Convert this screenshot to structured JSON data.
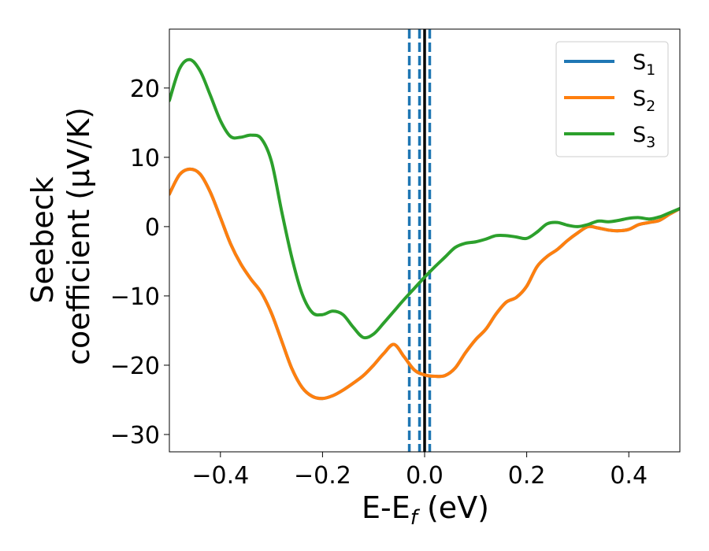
{
  "chart_data": {
    "type": "line",
    "xlabel": {
      "main": "E-E",
      "sub": "f",
      "suffix": " (eV)"
    },
    "ylabel": [
      "Seebeck",
      "coefficient  (μV/K)"
    ],
    "xlim": [
      -0.5,
      0.5
    ],
    "ylim": [
      -32.5,
      28.5
    ],
    "x_ticks": [
      -0.4,
      -0.2,
      0.0,
      0.2,
      0.4
    ],
    "x_tick_labels": [
      "−0.4",
      "−0.2",
      "0.0",
      "0.2",
      "0.4"
    ],
    "y_ticks": [
      -30,
      -20,
      -10,
      0,
      10,
      20
    ],
    "y_tick_labels": [
      "−30",
      "−20",
      "−10",
      "0",
      "10",
      "20"
    ],
    "grid": false,
    "legend_position": "top-right",
    "vertical_lines": [
      {
        "x": -0.03,
        "style": "dashed",
        "color": "#1f77b4"
      },
      {
        "x": -0.01,
        "style": "dashed",
        "color": "#1f77b4"
      },
      {
        "x": 0.01,
        "style": "dashed",
        "color": "#1f77b4"
      },
      {
        "x": 0.0,
        "style": "solid",
        "color": "#000000"
      }
    ],
    "series": [
      {
        "name": "S",
        "sub": "1",
        "color": "#1f77b4",
        "points": [
          [
            -0.5,
            4.7
          ],
          [
            -0.48,
            7.5
          ],
          [
            -0.46,
            8.3
          ],
          [
            -0.44,
            7.6
          ],
          [
            -0.42,
            5.0
          ],
          [
            -0.4,
            1.3
          ],
          [
            -0.38,
            -2.5
          ],
          [
            -0.36,
            -5.4
          ],
          [
            -0.34,
            -7.6
          ],
          [
            -0.32,
            -9.5
          ],
          [
            -0.3,
            -12.5
          ],
          [
            -0.28,
            -16.5
          ],
          [
            -0.26,
            -20.5
          ],
          [
            -0.24,
            -23.2
          ],
          [
            -0.22,
            -24.5
          ],
          [
            -0.2,
            -24.8
          ],
          [
            -0.18,
            -24.4
          ],
          [
            -0.16,
            -23.6
          ],
          [
            -0.14,
            -22.6
          ],
          [
            -0.12,
            -21.5
          ],
          [
            -0.1,
            -20.0
          ],
          [
            -0.08,
            -18.3
          ],
          [
            -0.06,
            -17.0
          ],
          [
            -0.04,
            -18.8
          ],
          [
            -0.02,
            -20.7
          ],
          [
            0.0,
            -21.4
          ],
          [
            0.02,
            -21.6
          ],
          [
            0.04,
            -21.5
          ],
          [
            0.06,
            -20.4
          ],
          [
            0.08,
            -18.2
          ],
          [
            0.1,
            -16.3
          ],
          [
            0.12,
            -14.8
          ],
          [
            0.14,
            -12.6
          ],
          [
            0.16,
            -10.9
          ],
          [
            0.18,
            -10.2
          ],
          [
            0.2,
            -8.6
          ],
          [
            0.22,
            -5.8
          ],
          [
            0.24,
            -4.3
          ],
          [
            0.26,
            -3.3
          ],
          [
            0.28,
            -2.0
          ],
          [
            0.3,
            -0.9
          ],
          [
            0.32,
            0.0
          ],
          [
            0.34,
            -0.2
          ],
          [
            0.36,
            -0.5
          ],
          [
            0.38,
            -0.6
          ],
          [
            0.4,
            -0.4
          ],
          [
            0.42,
            0.3
          ],
          [
            0.44,
            0.6
          ],
          [
            0.46,
            0.9
          ],
          [
            0.48,
            1.8
          ],
          [
            0.5,
            2.6
          ]
        ]
      },
      {
        "name": "S",
        "sub": "2",
        "color": "#ff7f0e",
        "points": [
          [
            -0.5,
            4.7
          ],
          [
            -0.48,
            7.5
          ],
          [
            -0.46,
            8.3
          ],
          [
            -0.44,
            7.6
          ],
          [
            -0.42,
            5.0
          ],
          [
            -0.4,
            1.3
          ],
          [
            -0.38,
            -2.5
          ],
          [
            -0.36,
            -5.4
          ],
          [
            -0.34,
            -7.6
          ],
          [
            -0.32,
            -9.5
          ],
          [
            -0.3,
            -12.5
          ],
          [
            -0.28,
            -16.5
          ],
          [
            -0.26,
            -20.5
          ],
          [
            -0.24,
            -23.2
          ],
          [
            -0.22,
            -24.5
          ],
          [
            -0.2,
            -24.8
          ],
          [
            -0.18,
            -24.4
          ],
          [
            -0.16,
            -23.6
          ],
          [
            -0.14,
            -22.6
          ],
          [
            -0.12,
            -21.5
          ],
          [
            -0.1,
            -20.0
          ],
          [
            -0.08,
            -18.3
          ],
          [
            -0.06,
            -17.0
          ],
          [
            -0.04,
            -18.8
          ],
          [
            -0.02,
            -20.7
          ],
          [
            0.0,
            -21.4
          ],
          [
            0.02,
            -21.6
          ],
          [
            0.04,
            -21.5
          ],
          [
            0.06,
            -20.4
          ],
          [
            0.08,
            -18.2
          ],
          [
            0.1,
            -16.3
          ],
          [
            0.12,
            -14.8
          ],
          [
            0.14,
            -12.6
          ],
          [
            0.16,
            -10.9
          ],
          [
            0.18,
            -10.2
          ],
          [
            0.2,
            -8.6
          ],
          [
            0.22,
            -5.8
          ],
          [
            0.24,
            -4.3
          ],
          [
            0.26,
            -3.3
          ],
          [
            0.28,
            -2.0
          ],
          [
            0.3,
            -0.9
          ],
          [
            0.32,
            0.0
          ],
          [
            0.34,
            -0.2
          ],
          [
            0.36,
            -0.5
          ],
          [
            0.38,
            -0.6
          ],
          [
            0.4,
            -0.4
          ],
          [
            0.42,
            0.3
          ],
          [
            0.44,
            0.6
          ],
          [
            0.46,
            0.9
          ],
          [
            0.48,
            1.8
          ],
          [
            0.5,
            2.6
          ]
        ]
      },
      {
        "name": "S",
        "sub": "3",
        "color": "#2ca02c",
        "points": [
          [
            -0.5,
            18.2
          ],
          [
            -0.48,
            22.8
          ],
          [
            -0.46,
            24.1
          ],
          [
            -0.44,
            22.5
          ],
          [
            -0.42,
            19.0
          ],
          [
            -0.4,
            15.3
          ],
          [
            -0.38,
            13.0
          ],
          [
            -0.36,
            12.9
          ],
          [
            -0.34,
            13.2
          ],
          [
            -0.32,
            12.7
          ],
          [
            -0.3,
            9.4
          ],
          [
            -0.28,
            2.2
          ],
          [
            -0.26,
            -4.5
          ],
          [
            -0.24,
            -9.7
          ],
          [
            -0.22,
            -12.4
          ],
          [
            -0.2,
            -12.7
          ],
          [
            -0.18,
            -12.2
          ],
          [
            -0.16,
            -12.7
          ],
          [
            -0.14,
            -14.5
          ],
          [
            -0.12,
            -16.0
          ],
          [
            -0.1,
            -15.5
          ],
          [
            -0.08,
            -13.9
          ],
          [
            -0.06,
            -12.2
          ],
          [
            -0.04,
            -10.5
          ],
          [
            -0.02,
            -8.9
          ],
          [
            0.0,
            -7.3
          ],
          [
            0.02,
            -5.8
          ],
          [
            0.04,
            -4.4
          ],
          [
            0.06,
            -3.0
          ],
          [
            0.08,
            -2.4
          ],
          [
            0.1,
            -2.2
          ],
          [
            0.12,
            -1.8
          ],
          [
            0.14,
            -1.3
          ],
          [
            0.16,
            -1.3
          ],
          [
            0.18,
            -1.5
          ],
          [
            0.2,
            -1.7
          ],
          [
            0.22,
            -0.8
          ],
          [
            0.24,
            0.4
          ],
          [
            0.26,
            0.6
          ],
          [
            0.28,
            0.2
          ],
          [
            0.3,
            0.0
          ],
          [
            0.32,
            0.3
          ],
          [
            0.34,
            0.8
          ],
          [
            0.36,
            0.7
          ],
          [
            0.38,
            0.9
          ],
          [
            0.4,
            1.2
          ],
          [
            0.42,
            1.3
          ],
          [
            0.44,
            1.1
          ],
          [
            0.46,
            1.4
          ],
          [
            0.48,
            2.0
          ],
          [
            0.5,
            2.6
          ]
        ]
      }
    ]
  }
}
